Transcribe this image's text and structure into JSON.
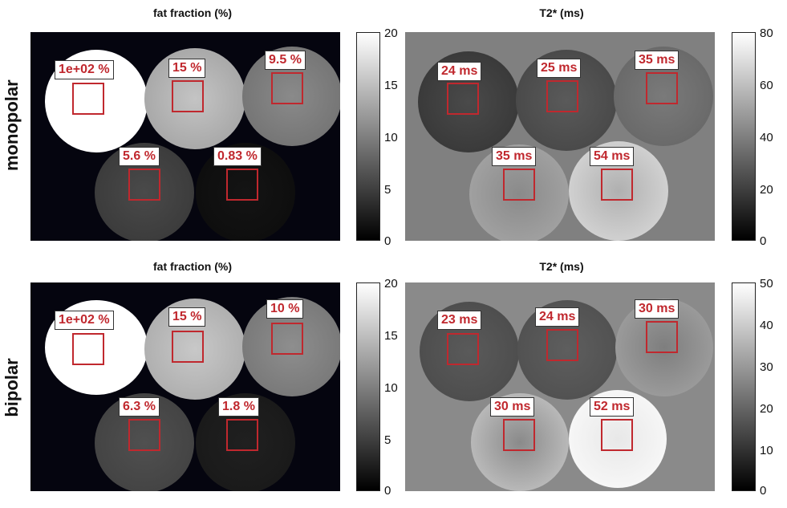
{
  "titles": {
    "ff_top": "fat fraction (%)",
    "t2_top": "T2* (ms)",
    "ff_bottom": "fat fraction (%)",
    "t2_bottom": "T2* (ms)"
  },
  "row_labels": {
    "top": "monopolar",
    "bottom": "bipolar"
  },
  "colorbars": {
    "ff_top": [
      "20",
      "15",
      "10",
      "5",
      "0"
    ],
    "t2_top": [
      "80",
      "60",
      "40",
      "20",
      "0"
    ],
    "ff_bottom": [
      "20",
      "15",
      "10",
      "5",
      "0"
    ],
    "t2_bottom": [
      "50",
      "40",
      "30",
      "20",
      "10",
      "0"
    ]
  },
  "rois": {
    "ff_top": [
      "1e+02 %",
      "15 %",
      "9.5 %",
      "5.6 %",
      "0.83 %"
    ],
    "t2_top": [
      "24 ms",
      "25 ms",
      "35 ms",
      "35 ms",
      "54 ms"
    ],
    "ff_bottom": [
      "1e+02 %",
      "15 %",
      "10 %",
      "6.3 %",
      "1.8 %"
    ],
    "t2_bottom": [
      "23 ms",
      "24 ms",
      "30 ms",
      "30 ms",
      "52 ms"
    ]
  }
}
